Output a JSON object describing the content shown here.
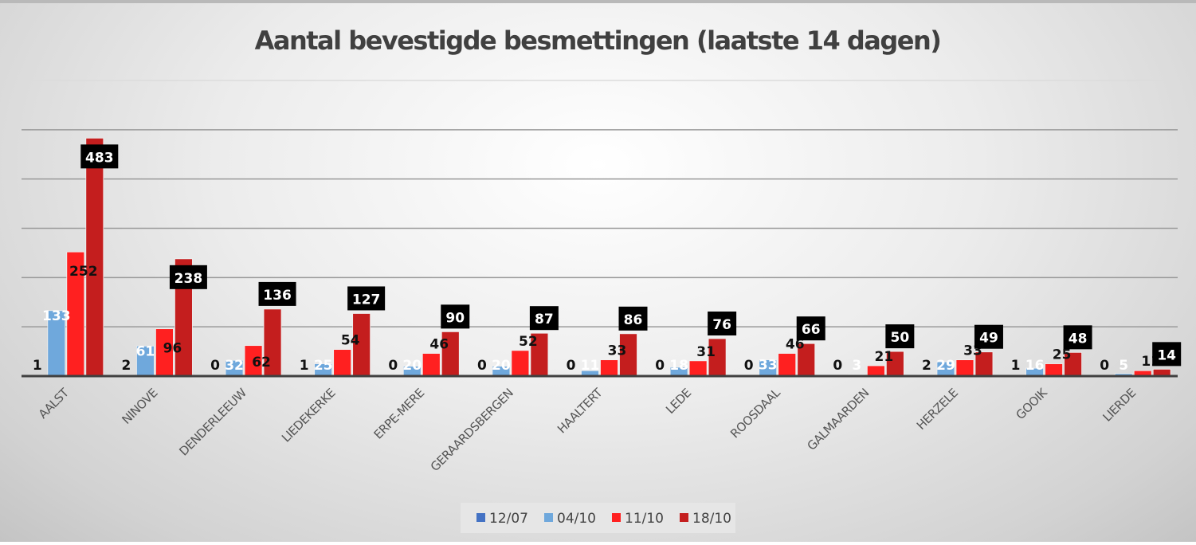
{
  "chart_data": {
    "type": "bar",
    "title": "Aantal bevestigde besmettingen (laatste 14 dagen)",
    "xlabel": "",
    "ylabel": "",
    "ylim": [
      0,
      600
    ],
    "grid": true,
    "y_axis_labels_visible": false,
    "legend_position": "bottom",
    "categories": [
      "AALST",
      "NINOVE",
      "DENDERLEEUW",
      "LIEDEKERKE",
      "ERPE-MERE",
      "GERAARDSBERGEN",
      "HAALTERT",
      "LEDE",
      "ROOSDAAL",
      "GALMAARDEN",
      "HERZELE",
      "GOOIK",
      "LIERDE"
    ],
    "series": [
      {
        "name": "12/07",
        "color": "#4472c4",
        "values": [
          1,
          2,
          0,
          1,
          0,
          0,
          0,
          0,
          0,
          0,
          2,
          1,
          0
        ]
      },
      {
        "name": "04/10",
        "color": "#6fa8dc",
        "values": [
          133,
          61,
          32,
          25,
          20,
          20,
          11,
          18,
          33,
          3,
          29,
          16,
          5
        ]
      },
      {
        "name": "11/10",
        "color": "#ff2020",
        "values": [
          252,
          96,
          62,
          54,
          46,
          52,
          33,
          31,
          46,
          21,
          33,
          25,
          11
        ]
      },
      {
        "name": "18/10",
        "color": "#c41e1e",
        "values": [
          483,
          238,
          136,
          127,
          90,
          87,
          86,
          76,
          66,
          50,
          49,
          48,
          14
        ]
      }
    ]
  }
}
